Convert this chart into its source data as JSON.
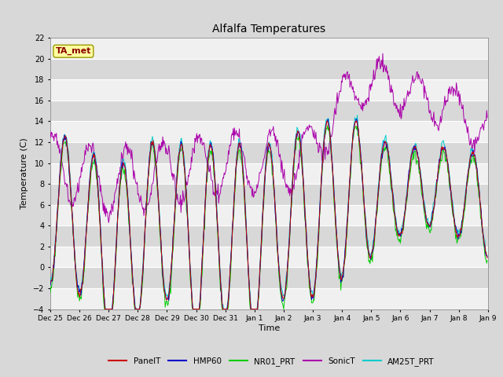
{
  "title": "Alfalfa Temperatures",
  "xlabel": "Time",
  "ylabel": "Temperature (C)",
  "ylim": [
    -4,
    22
  ],
  "yticks": [
    -4,
    -2,
    0,
    2,
    4,
    6,
    8,
    10,
    12,
    14,
    16,
    18,
    20,
    22
  ],
  "annotation_text": "TA_met",
  "annotation_color": "#8B0000",
  "annotation_bg": "#FFFFA0",
  "series_colors": {
    "PanelT": "#CC0000",
    "HMP60": "#0000CC",
    "NR01_PRT": "#00CC00",
    "SonicT": "#AA00AA",
    "AM25T_PRT": "#00CCCC"
  },
  "bg_color": "#D8D8D8",
  "stripe_color": "#F0F0F0",
  "n_points": 720,
  "num_days": 15
}
